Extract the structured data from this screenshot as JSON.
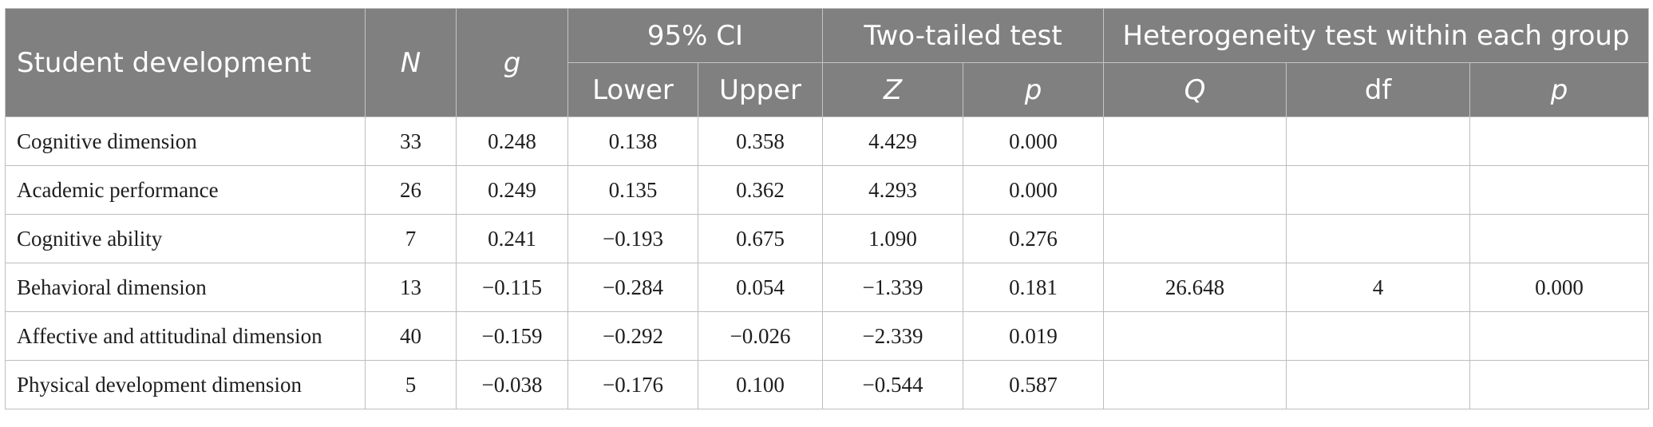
{
  "header": {
    "student_development": "Student development",
    "n": "N",
    "g": "g",
    "ci": "95% CI",
    "lower": "Lower",
    "upper": "Upper",
    "two_tailed": "Two-tailed test",
    "z": "Z",
    "p": "p",
    "heterogeneity": "Heterogeneity test within each group",
    "q": "Q",
    "df": "df",
    "p2": "p"
  },
  "rows": [
    {
      "label": "Cognitive dimension",
      "n": "33",
      "g": "0.248",
      "lower": "0.138",
      "upper": "0.358",
      "z": "4.429",
      "p": "0.000"
    },
    {
      "label": "Academic performance",
      "n": "26",
      "g": "0.249",
      "lower": "0.135",
      "upper": "0.362",
      "z": "4.293",
      "p": "0.000"
    },
    {
      "label": "Cognitive ability",
      "n": "7",
      "g": "0.241",
      "lower": "−0.193",
      "upper": "0.675",
      "z": "1.090",
      "p": "0.276"
    },
    {
      "label": "Behavioral dimension",
      "n": "13",
      "g": "−0.115",
      "lower": "−0.284",
      "upper": "0.054",
      "z": "−1.339",
      "p": "0.181"
    },
    {
      "label": "Affective and attitudinal dimension",
      "n": "40",
      "g": "−0.159",
      "lower": "−0.292",
      "upper": "−0.026",
      "z": "−2.339",
      "p": "0.019"
    },
    {
      "label": "Physical development dimension",
      "n": "5",
      "g": "−0.038",
      "lower": "−0.176",
      "upper": "0.100",
      "z": "−0.544",
      "p": "0.587"
    }
  ],
  "heterogeneity": {
    "q": "26.648",
    "df": "4",
    "p": "0.000"
  }
}
